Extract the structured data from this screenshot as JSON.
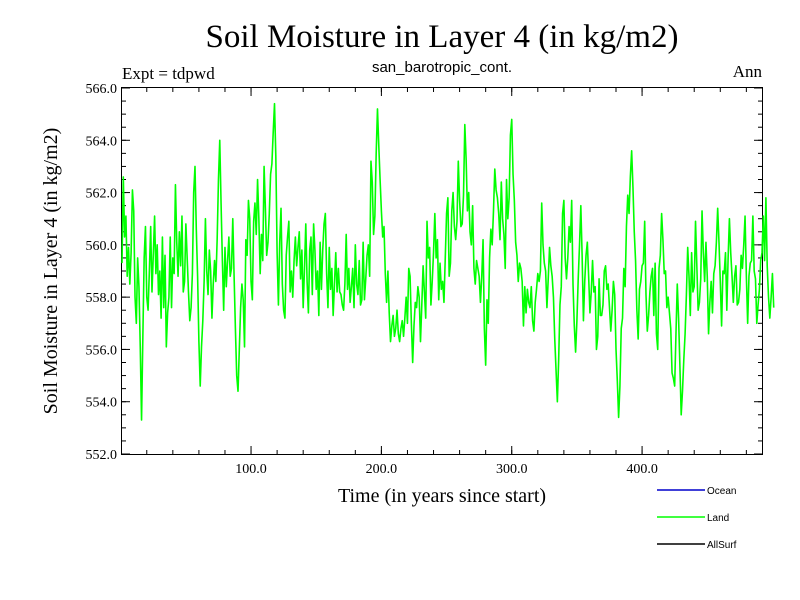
{
  "chart_data": {
    "type": "line",
    "title": "Soil Moisture in Layer 4 (in kg/m2)",
    "subtitle": "san_barotropic_cont.",
    "left_label": "Expt = tdpwd",
    "right_label": "Ann",
    "xlabel": "Time (in years since start)",
    "ylabel": "Soil Moisture in Layer 4 (in kg/m2)",
    "xlim": [
      1,
      492
    ],
    "ylim": [
      552.0,
      566.0
    ],
    "x_ticks": [
      100,
      200,
      300,
      400
    ],
    "x_tick_labels": [
      "100.0",
      "200.0",
      "300.0",
      "400.0"
    ],
    "y_ticks": [
      552,
      554,
      556,
      558,
      560,
      562,
      564,
      566
    ],
    "y_tick_labels": [
      "552.0",
      "554.0",
      "556.0",
      "558.0",
      "560.0",
      "562.0",
      "564.0",
      "566.0"
    ],
    "grid": false,
    "legend": {
      "placement": "bottom-right",
      "entries": [
        {
          "name": "Ocean",
          "color": "#0000cc"
        },
        {
          "name": "Land",
          "color": "#00ff00"
        },
        {
          "name": "AllSurf",
          "color": "#000000"
        }
      ]
    },
    "series": [
      {
        "name": "Land",
        "color": "#00ff00",
        "x_start": 1,
        "x_step": 1,
        "values": [
          559.3,
          562.6,
          560.3,
          561.1,
          558.8,
          559.9,
          558.5,
          559.7,
          562.1,
          561.3,
          558.0,
          557.0,
          559.5,
          558.4,
          556.1,
          553.3,
          556.5,
          559.5,
          560.7,
          558.0,
          557.5,
          559.0,
          560.7,
          558.2,
          559.6,
          561.1,
          558.9,
          560.0,
          558.1,
          559.0,
          557.2,
          560.3,
          557.6,
          559.6,
          556.1,
          557.4,
          558.0,
          560.3,
          557.6,
          559.5,
          558.9,
          562.3,
          560.1,
          558.8,
          560.5,
          559.2,
          561.1,
          558.2,
          558.6,
          560.8,
          559.5,
          558.2,
          557.1,
          557.6,
          558.9,
          562.0,
          563.0,
          560.6,
          558.8,
          556.3,
          554.6,
          556.1,
          557.1,
          558.6,
          561.0,
          559.0,
          558.1,
          559.8,
          559.0,
          557.2,
          558.5,
          559.4,
          558.6,
          560.2,
          562.5,
          564.0,
          561.6,
          559.4,
          557.5,
          559.9,
          558.4,
          559.4,
          560.3,
          558.8,
          559.1,
          561.0,
          558.8,
          556.8,
          555.0,
          554.4,
          556.0,
          557.6,
          558.5,
          557.9,
          556.1,
          560.2,
          559.6,
          561.7,
          561.0,
          558.6,
          557.9,
          560.9,
          561.6,
          560.4,
          562.5,
          561.0,
          558.9,
          560.4,
          559.4,
          563.0,
          561.4,
          559.6,
          560.1,
          561.2,
          562.7,
          563.1,
          564.3,
          565.4,
          563.4,
          559.7,
          557.7,
          560.1,
          561.4,
          558.5,
          557.5,
          557.2,
          559.6,
          560.3,
          560.9,
          558.2,
          559.0,
          558.0,
          559.4,
          560.3,
          559.2,
          559.9,
          560.5,
          558.7,
          559.8,
          557.6,
          559.1,
          560.8,
          558.6,
          557.4,
          559.8,
          560.3,
          558.1,
          560.8,
          559.8,
          558.3,
          559.0,
          557.3,
          560.1,
          558.3,
          559.8,
          560.8,
          561.2,
          558.9,
          557.6,
          559.9,
          558.3,
          559.1,
          557.3,
          558.5,
          559.7,
          558.2,
          559.1,
          558.2,
          558.1,
          557.7,
          557.5,
          558.5,
          560.4,
          558.3,
          559.1,
          557.8,
          558.4,
          559.1,
          557.6,
          560.0,
          558.5,
          558.1,
          559.4,
          557.7,
          557.9,
          560.1,
          557.9,
          558.7,
          559.6,
          560.0,
          558.8,
          563.2,
          562.4,
          560.4,
          561.1,
          563.5,
          565.2,
          563.8,
          562.5,
          561.3,
          560.3,
          560.7,
          558.9,
          557.8,
          559.0,
          557.4,
          556.3,
          556.9,
          557.3,
          556.5,
          556.8,
          557.5,
          556.6,
          556.3,
          556.8,
          557.1,
          556.5,
          557.2,
          558.0,
          557.0,
          559.1,
          558.8,
          557.0,
          555.5,
          556.9,
          557.8,
          557.6,
          558.4,
          558.0,
          556.3,
          557.7,
          559.2,
          558.2,
          557.2,
          560.9,
          559.5,
          559.9,
          557.7,
          558.6,
          559.7,
          561.2,
          559.5,
          560.2,
          557.9,
          559.3,
          558.3,
          558.6,
          557.8,
          559.5,
          561.2,
          561.8,
          558.8,
          559.3,
          561.3,
          562.0,
          560.7,
          560.2,
          560.9,
          563.2,
          561.7,
          560.7,
          560.8,
          561.9,
          564.6,
          563.3,
          561.3,
          562.0,
          560.5,
          560.0,
          561.5,
          559.1,
          558.5,
          559.4,
          559.1,
          558.8,
          557.8,
          558.8,
          560.2,
          556.8,
          555.4,
          557.9,
          557.0,
          559.5,
          560.6,
          560.0,
          561.3,
          562.9,
          562.1,
          561.8,
          561.2,
          560.2,
          562.4,
          561.0,
          560.4,
          559.1,
          562.5,
          561.0,
          561.8,
          564.2,
          564.8,
          562.7,
          561.7,
          560.1,
          559.6,
          558.6,
          559.3,
          559.1,
          558.6,
          556.9,
          558.4,
          557.4,
          558.3,
          557.8,
          557.6,
          558.4,
          557.1,
          556.7,
          557.8,
          558.3,
          558.9,
          558.6,
          559.0,
          561.6,
          560.0,
          559.3,
          559.0,
          557.6,
          558.7,
          559.9,
          559.2,
          558.8,
          558.0,
          556.4,
          555.2,
          554.0,
          555.6,
          557.7,
          558.4,
          561.2,
          561.7,
          559.5,
          558.7,
          559.5,
          560.7,
          560.1,
          561.7,
          558.5,
          556.9,
          555.9,
          557.1,
          558.7,
          560.0,
          561.5,
          559.6,
          557.1,
          558.6,
          559.6,
          560.1,
          558.8,
          557.4,
          558.2,
          559.4,
          558.2,
          558.4,
          556.0,
          556.5,
          558.7,
          557.3,
          557.3,
          557.7,
          559.0,
          559.2,
          558.3,
          558.5,
          557.6,
          556.7,
          557.5,
          558.6,
          558.1,
          556.0,
          554.8,
          553.4,
          554.6,
          556.8,
          557.2,
          559.1,
          558.4,
          560.7,
          561.9,
          561.2,
          562.6,
          563.6,
          562.2,
          560.5,
          559.4,
          557.5,
          556.4,
          558.3,
          558.6,
          559.2,
          559.3,
          560.9,
          558.1,
          556.7,
          557.3,
          558.2,
          558.8,
          559.1,
          557.3,
          559.3,
          556.6,
          556.0,
          559.1,
          559.6,
          561.2,
          560.2,
          558.9,
          559.0,
          557.6,
          558.0,
          557.4,
          556.8,
          555.1,
          554.9,
          554.6,
          556.6,
          558.5,
          557.2,
          555.4,
          553.5,
          554.4,
          555.6,
          556.6,
          558.1,
          559.9,
          558.8,
          557.3,
          559.7,
          558.2,
          558.4,
          560.9,
          559.2,
          557.5,
          557.8,
          558.7,
          561.3,
          559.7,
          558.6,
          560.1,
          558.8,
          556.6,
          557.8,
          558.6,
          557.4,
          558.9,
          559.2,
          560.1,
          561.4,
          560.1,
          558.6,
          556.9,
          559.0,
          558.9,
          559.7,
          557.5,
          559.5,
          561.0,
          559.7,
          558.8,
          557.8,
          558.8,
          559.2,
          557.7,
          557.8,
          558.3,
          559.6,
          559.1,
          560.0,
          561.1,
          558.8,
          557.0,
          558.8,
          559.3,
          559.4,
          561.1,
          559.0,
          558.7,
          557.0,
          557.7,
          558.3,
          559.4,
          559.7,
          561.1,
          559.4,
          561.8,
          559.2,
          558.0,
          557.2,
          558.0,
          558.9,
          557.6
        ]
      }
    ]
  }
}
